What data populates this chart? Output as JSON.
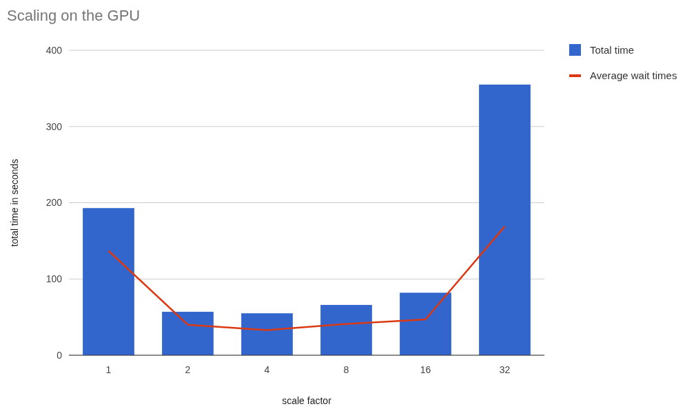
{
  "chart_data": {
    "type": "bar",
    "title": "Scaling on the GPU",
    "xlabel": "scale factor",
    "ylabel": "total time in seconds",
    "categories": [
      "1",
      "2",
      "4",
      "8",
      "16",
      "32"
    ],
    "series": [
      {
        "name": "Total time",
        "color": "#3366cc",
        "values": [
          193,
          57,
          55,
          66,
          82,
          355
        ]
      },
      {
        "name": "Average wait times",
        "type": "line",
        "color": "#dc3912",
        "values": [
          137,
          40,
          33,
          41,
          47,
          169
        ]
      }
    ],
    "ylim": [
      0,
      400
    ],
    "yticks": [
      0,
      100,
      200,
      300,
      400
    ],
    "grid": "y",
    "legend": "top right"
  }
}
